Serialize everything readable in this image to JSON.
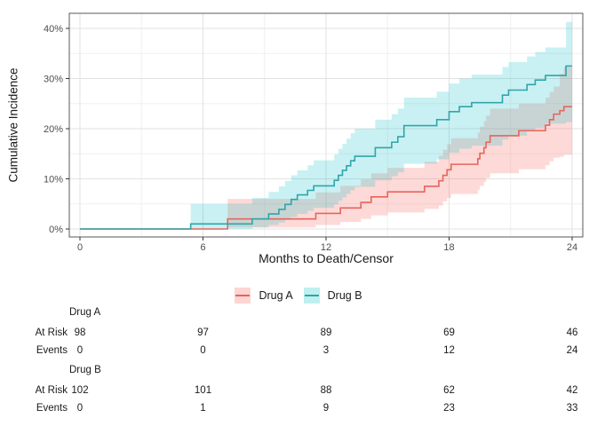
{
  "colors": {
    "background": "#FFFFFF",
    "grid_major": "#E2E2E2",
    "grid_minor": "#F0F0F0",
    "panel_border": "#595959",
    "tick_mark": "#333333",
    "tick_label": "#4D4D4D",
    "title_text": "#1A1A1A",
    "table_text": "#1A1A1A",
    "drug_a_line": "#E7645E",
    "drug_a_fill": "#F8766D",
    "drug_b_line": "#2FA5A9",
    "drug_b_fill": "#00BFC4"
  },
  "chart_data": {
    "type": "line",
    "subtype": "step-cumulative-incidence-with-ci-bands",
    "title": "",
    "xlabel": "Months to Death/Censor",
    "ylabel": "Cumulative Incidence",
    "grid": true,
    "legend_position": "bottom",
    "x_axis": {
      "range": [
        0,
        24
      ],
      "ticks": [
        0,
        6,
        12,
        18,
        24
      ],
      "tick_labels": [
        "0",
        "6",
        "12",
        "18",
        "24"
      ],
      "minor_ticks": [
        3,
        9,
        15,
        21
      ]
    },
    "y_axis": {
      "range": [
        0,
        40
      ],
      "ticks": [
        0,
        10,
        20,
        30,
        40
      ],
      "tick_labels": [
        "0%",
        "10%",
        "20%",
        "30%",
        "40%"
      ],
      "minor_ticks": [
        5,
        15,
        25,
        35
      ]
    },
    "series": [
      {
        "name": "Drug A",
        "line_color": "#E7645E",
        "fill_color": "#F8766D",
        "fill_opacity": 0.27,
        "points": [
          {
            "t": 0,
            "v": 0
          },
          {
            "t": 7.2,
            "v": 2.0,
            "lo": 0.3,
            "hi": 6.0
          },
          {
            "t": 11.5,
            "v": 3.1,
            "lo": 0.8,
            "hi": 7.3
          },
          {
            "t": 12.7,
            "v": 4.2,
            "lo": 1.4,
            "hi": 8.6
          },
          {
            "t": 13.7,
            "v": 5.3,
            "lo": 2.0,
            "hi": 9.9
          },
          {
            "t": 14.2,
            "v": 6.4,
            "lo": 2.7,
            "hi": 11.1
          },
          {
            "t": 15.0,
            "v": 7.4,
            "lo": 3.3,
            "hi": 12.2
          },
          {
            "t": 16.8,
            "v": 8.5,
            "lo": 4.0,
            "hi": 13.4
          },
          {
            "t": 17.5,
            "v": 9.6,
            "lo": 4.7,
            "hi": 14.6
          },
          {
            "t": 17.7,
            "v": 10.7,
            "lo": 5.5,
            "hi": 15.8
          },
          {
            "t": 17.9,
            "v": 11.8,
            "lo": 6.2,
            "hi": 16.9
          },
          {
            "t": 18.1,
            "v": 12.9,
            "lo": 7.0,
            "hi": 18.1
          },
          {
            "t": 19.4,
            "v": 14.0,
            "lo": 7.8,
            "hi": 19.2
          },
          {
            "t": 19.5,
            "v": 15.1,
            "lo": 8.6,
            "hi": 20.4
          },
          {
            "t": 19.7,
            "v": 16.2,
            "lo": 9.4,
            "hi": 21.5
          },
          {
            "t": 19.8,
            "v": 17.3,
            "lo": 10.2,
            "hi": 22.6
          },
          {
            "t": 20.0,
            "v": 18.6,
            "lo": 11.1,
            "hi": 24.0
          },
          {
            "t": 21.4,
            "v": 19.6,
            "lo": 11.9,
            "hi": 25.0
          },
          {
            "t": 22.7,
            "v": 20.7,
            "lo": 12.7,
            "hi": 26.2
          },
          {
            "t": 22.9,
            "v": 21.8,
            "lo": 13.5,
            "hi": 27.3
          },
          {
            "t": 23.1,
            "v": 22.9,
            "lo": 14.2,
            "hi": 28.4
          },
          {
            "t": 23.4,
            "v": 23.6,
            "lo": 14.4,
            "hi": 30.9
          },
          {
            "t": 23.6,
            "v": 24.4,
            "lo": 14.8,
            "hi": 32.3
          }
        ]
      },
      {
        "name": "Drug B",
        "line_color": "#2FA5A9",
        "fill_color": "#00BFC4",
        "fill_opacity": 0.21,
        "points": [
          {
            "t": 0,
            "v": 0
          },
          {
            "t": 5.4,
            "v": 1.0,
            "lo": 0.0,
            "hi": 5.0
          },
          {
            "t": 8.4,
            "v": 2.0,
            "lo": 0.3,
            "hi": 6.2
          },
          {
            "t": 9.2,
            "v": 3.0,
            "lo": 0.8,
            "hi": 7.4
          },
          {
            "t": 9.7,
            "v": 3.9,
            "lo": 1.3,
            "hi": 8.5
          },
          {
            "t": 10.0,
            "v": 4.9,
            "lo": 1.8,
            "hi": 9.6
          },
          {
            "t": 10.3,
            "v": 5.9,
            "lo": 2.4,
            "hi": 10.7
          },
          {
            "t": 10.6,
            "v": 6.8,
            "lo": 3.0,
            "hi": 11.7
          },
          {
            "t": 11.1,
            "v": 7.7,
            "lo": 3.6,
            "hi": 12.7
          },
          {
            "t": 11.4,
            "v": 8.6,
            "lo": 4.2,
            "hi": 13.7
          },
          {
            "t": 12.4,
            "v": 9.7,
            "lo": 4.9,
            "hi": 14.9
          },
          {
            "t": 12.6,
            "v": 10.7,
            "lo": 5.6,
            "hi": 16.0
          },
          {
            "t": 12.8,
            "v": 11.7,
            "lo": 6.3,
            "hi": 17.0
          },
          {
            "t": 13.0,
            "v": 12.6,
            "lo": 7.0,
            "hi": 18.0
          },
          {
            "t": 13.2,
            "v": 13.6,
            "lo": 7.7,
            "hi": 19.1
          },
          {
            "t": 13.4,
            "v": 14.5,
            "lo": 8.4,
            "hi": 20.0
          },
          {
            "t": 14.4,
            "v": 16.2,
            "lo": 9.7,
            "hi": 21.8
          },
          {
            "t": 15.2,
            "v": 17.3,
            "lo": 10.5,
            "hi": 22.9
          },
          {
            "t": 15.5,
            "v": 18.4,
            "lo": 11.3,
            "hi": 24.0
          },
          {
            "t": 15.8,
            "v": 20.6,
            "lo": 13.0,
            "hi": 26.2
          },
          {
            "t": 17.4,
            "v": 21.8,
            "lo": 13.9,
            "hi": 27.4
          },
          {
            "t": 18.0,
            "v": 23.4,
            "lo": 15.2,
            "hi": 29.0
          },
          {
            "t": 18.5,
            "v": 24.4,
            "lo": 16.0,
            "hi": 30.0
          },
          {
            "t": 19.1,
            "v": 25.2,
            "lo": 16.6,
            "hi": 30.8
          },
          {
            "t": 20.6,
            "v": 26.7,
            "lo": 17.8,
            "hi": 32.3
          },
          {
            "t": 20.9,
            "v": 27.7,
            "lo": 18.6,
            "hi": 33.3
          },
          {
            "t": 21.8,
            "v": 28.8,
            "lo": 19.5,
            "hi": 34.4
          },
          {
            "t": 22.2,
            "v": 29.7,
            "lo": 20.2,
            "hi": 35.3
          },
          {
            "t": 22.7,
            "v": 30.6,
            "lo": 21.0,
            "hi": 36.2
          },
          {
            "t": 23.7,
            "v": 32.5,
            "lo": 21.3,
            "hi": 41.3
          }
        ]
      }
    ]
  },
  "risk_table": {
    "time_points": [
      0,
      6,
      12,
      18,
      24
    ],
    "groups": [
      {
        "name": "Drug A",
        "rows": [
          {
            "label": "At Risk",
            "values": [
              "98",
              "97",
              "89",
              "69",
              "46"
            ]
          },
          {
            "label": "Events",
            "values": [
              "0",
              "0",
              "3",
              "12",
              "24"
            ]
          }
        ]
      },
      {
        "name": "Drug B",
        "rows": [
          {
            "label": "At Risk",
            "values": [
              "102",
              "101",
              "88",
              "62",
              "42"
            ]
          },
          {
            "label": "Events",
            "values": [
              "0",
              "1",
              "9",
              "23",
              "33"
            ]
          }
        ]
      }
    ]
  }
}
